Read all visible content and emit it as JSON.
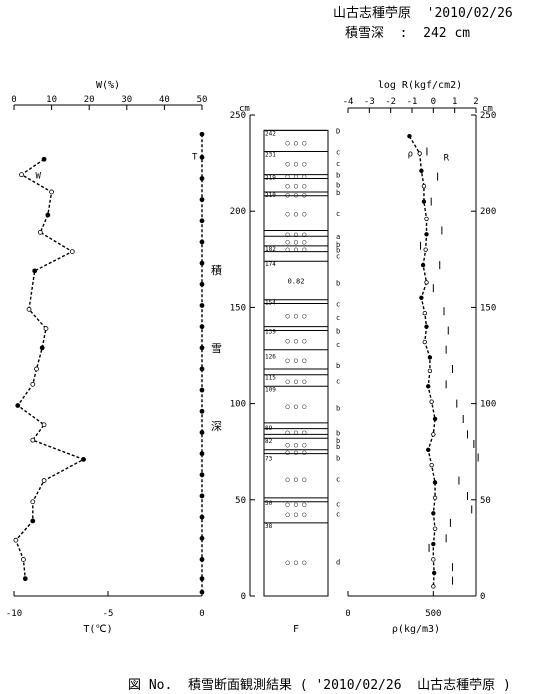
{
  "header": {
    "line1": "山古志種苧原  '2010/02/26",
    "line2": "積雪深  :  242 cm"
  },
  "caption": "図 No.  積雪断面観測結果 ( '2010/02/26  山古志種苧原 )",
  "chart_data": [
    {
      "id": "water-temp",
      "type": "line",
      "top_axis": {
        "label": "W(%)",
        "range": [
          0,
          50
        ],
        "ticks": [
          0,
          10,
          20,
          30,
          40,
          50
        ]
      },
      "bottom_axis": {
        "label": "T(℃)",
        "range": [
          -10,
          0
        ],
        "ticks": [
          -10,
          -5,
          0
        ]
      },
      "series": [
        {
          "name": "W",
          "axis": "top",
          "values": [
            {
              "h": 227,
              "v": 8
            },
            {
              "h": 219,
              "v": 2
            },
            {
              "h": 210,
              "v": 10
            },
            {
              "h": 198,
              "v": 9
            },
            {
              "h": 189,
              "v": 7
            },
            {
              "h": 179,
              "v": 15.5
            },
            {
              "h": 169,
              "v": 5.5
            },
            {
              "h": 149,
              "v": 4
            },
            {
              "h": 139,
              "v": 8.5
            },
            {
              "h": 129,
              "v": 7.5
            },
            {
              "h": 118,
              "v": 6
            },
            {
              "h": 110,
              "v": 5
            },
            {
              "h": 99,
              "v": 1
            },
            {
              "h": 89,
              "v": 8
            },
            {
              "h": 81,
              "v": 5
            },
            {
              "h": 71,
              "v": 18.5
            },
            {
              "h": 60,
              "v": 8
            },
            {
              "h": 49,
              "v": 5
            },
            {
              "h": 39,
              "v": 5
            },
            {
              "h": 29,
              "v": 0.5
            },
            {
              "h": 19,
              "v": 2.5
            },
            {
              "h": 9,
              "v": 3
            }
          ]
        },
        {
          "name": "T",
          "axis": "bottom",
          "values": [
            {
              "h": 240,
              "v": 0
            },
            {
              "h": 228,
              "v": 0
            },
            {
              "h": 217,
              "v": 0
            },
            {
              "h": 206,
              "v": 0
            },
            {
              "h": 195,
              "v": 0
            },
            {
              "h": 184,
              "v": 0
            },
            {
              "h": 173,
              "v": 0
            },
            {
              "h": 162,
              "v": 0
            },
            {
              "h": 151,
              "v": 0
            },
            {
              "h": 140,
              "v": 0
            },
            {
              "h": 129,
              "v": 0
            },
            {
              "h": 118,
              "v": 0
            },
            {
              "h": 107,
              "v": 0
            },
            {
              "h": 96,
              "v": 0
            },
            {
              "h": 85,
              "v": 0
            },
            {
              "h": 74,
              "v": 0
            },
            {
              "h": 63,
              "v": 0
            },
            {
              "h": 52,
              "v": 0
            },
            {
              "h": 41,
              "v": 0
            },
            {
              "h": 30,
              "v": 0
            },
            {
              "h": 19,
              "v": 0
            },
            {
              "h": 9,
              "v": 0
            },
            {
              "h": 2,
              "v": 0
            }
          ]
        }
      ]
    },
    {
      "id": "snow-profile",
      "type": "table",
      "vertical_axis": {
        "label": "cm",
        "range": [
          0,
          250
        ],
        "ticks": [
          0,
          50,
          100,
          150,
          200,
          250
        ]
      },
      "side_label": "積雪深",
      "bottom_label": "F",
      "snow_depth": 242,
      "boundaries": [
        242,
        231,
        219,
        217,
        210,
        208,
        190,
        187,
        182,
        179,
        174,
        154,
        152,
        140,
        138,
        128,
        118,
        115,
        109,
        90,
        87,
        84,
        82,
        76,
        74,
        51,
        49,
        38
      ],
      "depth_labels": [
        {
          "h": 242,
          "t": "242"
        },
        {
          "h": 231,
          "t": "231"
        },
        {
          "h": 219,
          "t": "219"
        },
        {
          "h": 210,
          "t": "210"
        },
        {
          "h": 182,
          "t": "182"
        },
        {
          "h": 174,
          "t": "174"
        },
        {
          "h": 154,
          "t": "154"
        },
        {
          "h": 139,
          "t": "139"
        },
        {
          "h": 126,
          "t": "126"
        },
        {
          "h": 115,
          "t": "115"
        },
        {
          "h": 109,
          "t": "109"
        },
        {
          "h": 89,
          "t": "89"
        },
        {
          "h": 82,
          "t": "82"
        },
        {
          "h": 73,
          "t": "73"
        },
        {
          "h": 50,
          "t": "50"
        },
        {
          "h": 38,
          "t": "38"
        }
      ],
      "grain_marks": [
        {
          "h": 236,
          "t": "○ ○ ○"
        },
        {
          "h": 225,
          "t": "○ ○ ○"
        },
        {
          "h": 218.5,
          "t": "○ ○ ○"
        },
        {
          "h": 213.5,
          "t": "○ ○ ○"
        },
        {
          "h": 209,
          "t": "○ ○ ○"
        },
        {
          "h": 199,
          "t": "○ ○ ○"
        },
        {
          "h": 188.5,
          "t": "○ ○ ○"
        },
        {
          "h": 184.5,
          "t": "○ ○ ○"
        },
        {
          "h": 180.5,
          "t": "○ ○ ○"
        },
        {
          "h": 164,
          "t": "0.82"
        },
        {
          "h": 146,
          "t": "○ ○ ○"
        },
        {
          "h": 133,
          "t": "○ ○ ○"
        },
        {
          "h": 123,
          "t": "○ ○ ○"
        },
        {
          "h": 112,
          "t": "○ ○ ○"
        },
        {
          "h": 99,
          "t": "○ ○ ○"
        },
        {
          "h": 85.5,
          "t": "○ ○ ○"
        },
        {
          "h": 79,
          "t": "○ ○ ○"
        },
        {
          "h": 75,
          "t": "○ ○ ○"
        },
        {
          "h": 61,
          "t": "○ ○ ○"
        },
        {
          "h": 48,
          "t": "○ ○ ○"
        },
        {
          "h": 43,
          "t": "○ ○ ○"
        },
        {
          "h": 18,
          "t": "○ ○ ○"
        }
      ],
      "hardness_codes": [
        {
          "h": 242,
          "t": "D"
        },
        {
          "h": 231,
          "t": "c"
        },
        {
          "h": 225,
          "t": "c"
        },
        {
          "h": 219,
          "t": "b"
        },
        {
          "h": 214,
          "t": "b"
        },
        {
          "h": 210,
          "t": "b"
        },
        {
          "h": 199,
          "t": "c"
        },
        {
          "h": 187,
          "t": "a"
        },
        {
          "h": 183,
          "t": "b"
        },
        {
          "h": 180,
          "t": "b"
        },
        {
          "h": 177,
          "t": "c"
        },
        {
          "h": 163,
          "t": "b"
        },
        {
          "h": 152,
          "t": "c"
        },
        {
          "h": 145,
          "t": "c"
        },
        {
          "h": 138,
          "t": "b"
        },
        {
          "h": 131,
          "t": "c"
        },
        {
          "h": 120,
          "t": "b"
        },
        {
          "h": 112,
          "t": "c"
        },
        {
          "h": 98,
          "t": "b"
        },
        {
          "h": 85,
          "t": "b"
        },
        {
          "h": 81,
          "t": "b"
        },
        {
          "h": 78,
          "t": "b"
        },
        {
          "h": 72,
          "t": "b"
        },
        {
          "h": 61,
          "t": "c"
        },
        {
          "h": 48,
          "t": "c"
        },
        {
          "h": 43,
          "t": "c"
        },
        {
          "h": 18,
          "t": "d"
        }
      ]
    },
    {
      "id": "density-resistance",
      "type": "scatter",
      "top_axis": {
        "label": "log R(kgf/cm2)",
        "range": [
          -4,
          2
        ],
        "ticks": [
          -4,
          -3,
          -2,
          -1,
          0,
          1,
          2
        ]
      },
      "bottom_axis": {
        "label": "ρ(kg/m3)",
        "range": [
          0,
          750
        ],
        "ticks": [
          0,
          500
        ]
      },
      "vertical_axis": {
        "label": "cm",
        "range": [
          0,
          250
        ],
        "ticks": [
          0,
          50,
          100,
          150,
          200,
          250
        ]
      },
      "series": [
        {
          "name": "ρ",
          "axis": "bottom",
          "values": [
            {
              "h": 239,
              "v": 360
            },
            {
              "h": 230,
              "v": 420
            },
            {
              "h": 221,
              "v": 430
            },
            {
              "h": 213,
              "v": 445
            },
            {
              "h": 205,
              "v": 445
            },
            {
              "h": 196,
              "v": 460
            },
            {
              "h": 188,
              "v": 460
            },
            {
              "h": 180,
              "v": 455
            },
            {
              "h": 172,
              "v": 440
            },
            {
              "h": 163,
              "v": 460
            },
            {
              "h": 155,
              "v": 430
            },
            {
              "h": 147,
              "v": 450
            },
            {
              "h": 140,
              "v": 460
            },
            {
              "h": 132,
              "v": 450
            },
            {
              "h": 124,
              "v": 480
            },
            {
              "h": 117,
              "v": 480
            },
            {
              "h": 109,
              "v": 470
            },
            {
              "h": 101,
              "v": 490
            },
            {
              "h": 92,
              "v": 510
            },
            {
              "h": 84,
              "v": 500
            },
            {
              "h": 76,
              "v": 470
            },
            {
              "h": 68,
              "v": 490
            },
            {
              "h": 59,
              "v": 510
            },
            {
              "h": 51,
              "v": 510
            },
            {
              "h": 43,
              "v": 500
            },
            {
              "h": 35,
              "v": 510
            },
            {
              "h": 27,
              "v": 500
            },
            {
              "h": 19,
              "v": 500
            },
            {
              "h": 12,
              "v": 505
            },
            {
              "h": 5,
              "v": 500
            }
          ]
        },
        {
          "name": "R",
          "axis": "top",
          "values": [
            {
              "h": 231,
              "v": -0.3
            },
            {
              "h": 218,
              "v": 0.2
            },
            {
              "h": 205,
              "v": -0.1
            },
            {
              "h": 190,
              "v": 0.4
            },
            {
              "h": 182,
              "v": -0.6
            },
            {
              "h": 172,
              "v": 0.3
            },
            {
              "h": 160,
              "v": 0.0
            },
            {
              "h": 148,
              "v": 0.5
            },
            {
              "h": 138,
              "v": 0.7
            },
            {
              "h": 128,
              "v": 0.6
            },
            {
              "h": 118,
              "v": 0.9
            },
            {
              "h": 110,
              "v": 0.6
            },
            {
              "h": 100,
              "v": 1.1
            },
            {
              "h": 92,
              "v": 1.4
            },
            {
              "h": 84,
              "v": 1.6
            },
            {
              "h": 79,
              "v": 1.9
            },
            {
              "h": 72,
              "v": 2.1
            },
            {
              "h": 60,
              "v": 1.2
            },
            {
              "h": 52,
              "v": 1.6
            },
            {
              "h": 45,
              "v": 1.8
            },
            {
              "h": 38,
              "v": 0.8
            },
            {
              "h": 30,
              "v": 0.6
            },
            {
              "h": 25,
              "v": -0.2
            },
            {
              "h": 15,
              "v": 0.9
            },
            {
              "h": 8,
              "v": 0.9
            }
          ]
        }
      ]
    }
  ]
}
